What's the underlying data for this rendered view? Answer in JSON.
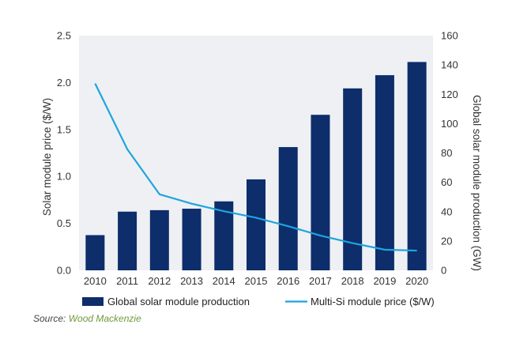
{
  "chart_data": {
    "type": "bar",
    "categories": [
      "2010",
      "2011",
      "2012",
      "2013",
      "2014",
      "2015",
      "2016",
      "2017",
      "2018",
      "2019",
      "2020"
    ],
    "series": [
      {
        "name": "Global solar module production",
        "kind": "bar",
        "axis": "right",
        "color": "#0d2d6b",
        "values": [
          24,
          40,
          41,
          42,
          47,
          62,
          84,
          106,
          124,
          133,
          142
        ]
      },
      {
        "name": "Multi-Si module price ($/W)",
        "kind": "line",
        "axis": "left",
        "color": "#1ea5dc",
        "values": [
          1.99,
          1.29,
          0.81,
          0.71,
          0.63,
          0.56,
          0.47,
          0.37,
          0.29,
          0.22,
          0.21
        ]
      }
    ],
    "ylabel": "Solar module price ($/W)",
    "ylabel_right": "Global solar module production (GW)",
    "ylim": [
      0,
      2.5
    ],
    "ylim_right": [
      0,
      160
    ],
    "yticks": [
      "0.0",
      "0.5",
      "1.0",
      "1.5",
      "2.0",
      "2.5"
    ],
    "yticks_right": [
      "0",
      "20",
      "40",
      "60",
      "80",
      "100",
      "120",
      "140",
      "160"
    ],
    "grid": false,
    "legend_position": "bottom",
    "background": "#eef0f4"
  },
  "source": {
    "prefix": "Source: ",
    "name": "Wood Mackenzie"
  }
}
